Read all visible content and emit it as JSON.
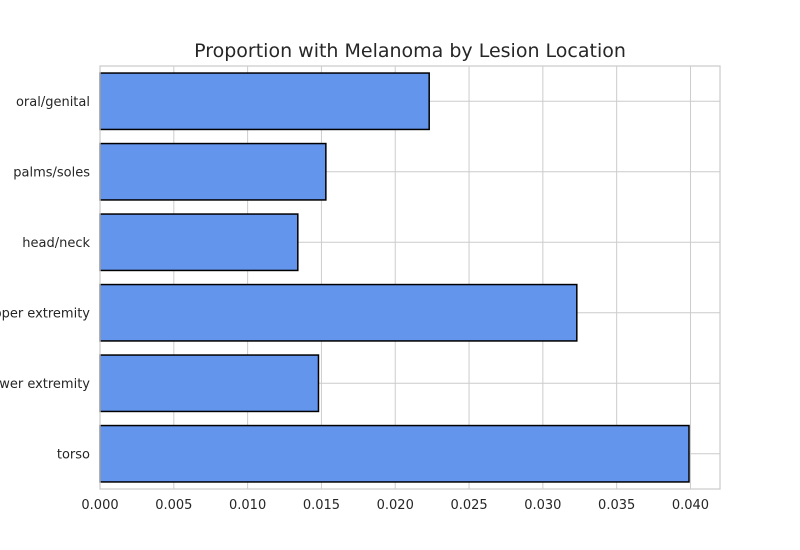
{
  "chart_data": {
    "type": "bar",
    "orientation": "horizontal",
    "title": "Proportion with Melanoma by Lesion Location",
    "xlabel": "",
    "ylabel": "",
    "categories": [
      "torso",
      "lower extremity",
      "upper extremity",
      "head/neck",
      "palms/soles",
      "oral/genital"
    ],
    "values": [
      0.0399,
      0.0148,
      0.0323,
      0.0134,
      0.0153,
      0.0223
    ],
    "xlim": [
      0,
      0.042
    ],
    "xticks": [
      "0.000",
      "0.005",
      "0.010",
      "0.015",
      "0.020",
      "0.025",
      "0.030",
      "0.035",
      "0.040"
    ],
    "grid": true,
    "legend": "none",
    "bar_color": "#6495ED",
    "edge_color": "#000000"
  }
}
